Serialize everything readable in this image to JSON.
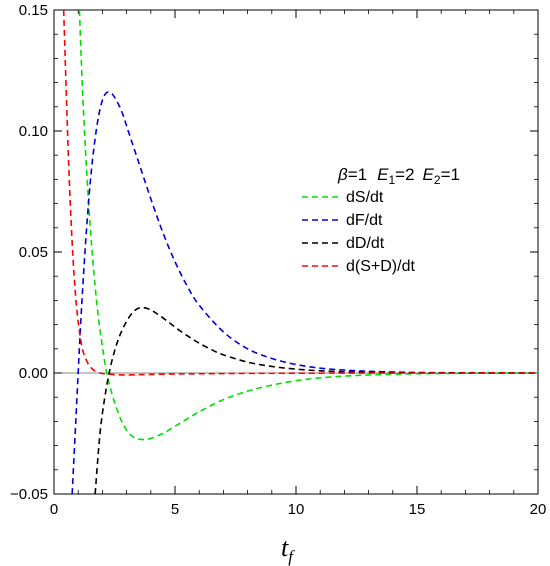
{
  "chart_data": {
    "type": "line",
    "title": "",
    "xlabel_main": "t",
    "xlabel_sub": "f",
    "ylabel": "",
    "xlim": [
      0,
      20
    ],
    "ylim": [
      -0.05,
      0.15
    ],
    "x_ticks": [
      0,
      5,
      10,
      15,
      20
    ],
    "x_tick_labels": [
      "0",
      "5",
      "10",
      "15",
      "20"
    ],
    "y_ticks": [
      -0.05,
      0.0,
      0.05,
      0.1,
      0.15
    ],
    "y_tick_labels": [
      "−0.05",
      "0.00",
      "0.05",
      "0.10",
      "0.15"
    ],
    "grid": false,
    "legend_position": "right-center",
    "legend_title": {
      "beta_symbol": "β",
      "beta_value": "=1",
      "e1_symbol": "E",
      "e1_sub": "1",
      "e1_value": "=2",
      "e2_symbol": "E",
      "e2_sub": "2",
      "e2_value": "=1"
    },
    "series": [
      {
        "name": "dS/dt",
        "color": "#00e000",
        "x": [
          1.05,
          1.2,
          1.4,
          1.6,
          1.8,
          2.0,
          2.2,
          2.5,
          2.8,
          3.1,
          3.4,
          3.7,
          4.0,
          4.5,
          5.0,
          5.5,
          6.0,
          7.0,
          8.0,
          9.0,
          10.0,
          11.0,
          12.0,
          13.0,
          14.0,
          15.0,
          16.0,
          17.0,
          18.0,
          19.0,
          20.0
        ],
        "values": [
          0.15,
          0.112,
          0.075,
          0.047,
          0.026,
          0.011,
          -0.001,
          -0.012,
          -0.02,
          -0.025,
          -0.027,
          -0.0275,
          -0.027,
          -0.025,
          -0.022,
          -0.019,
          -0.016,
          -0.011,
          -0.0075,
          -0.005,
          -0.0032,
          -0.002,
          -0.0013,
          -0.0008,
          -0.0005,
          -0.0003,
          -0.0002,
          -0.0001,
          -6e-05,
          -3e-05,
          0.0
        ]
      },
      {
        "name": "dF/dt",
        "color": "#0000e0",
        "x": [
          0.75,
          0.9,
          1.1,
          1.3,
          1.5,
          1.7,
          1.9,
          2.1,
          2.3,
          2.5,
          2.8,
          3.1,
          3.5,
          4.0,
          4.5,
          5.0,
          5.5,
          6.0,
          7.0,
          8.0,
          9.0,
          10.0,
          11.0,
          12.0,
          13.0,
          14.0,
          15.0,
          16.0,
          17.0,
          18.0,
          19.0,
          20.0
        ],
        "values": [
          -0.05,
          -0.02,
          0.02,
          0.053,
          0.079,
          0.097,
          0.109,
          0.115,
          0.116,
          0.114,
          0.108,
          0.099,
          0.087,
          0.072,
          0.058,
          0.046,
          0.036,
          0.028,
          0.017,
          0.01,
          0.006,
          0.0035,
          0.002,
          0.0012,
          0.0007,
          0.0004,
          0.0002,
          0.00012,
          7e-05,
          4e-05,
          2e-05,
          0.0
        ]
      },
      {
        "name": "dD/dt",
        "color": "#000000",
        "x": [
          1.7,
          1.9,
          2.1,
          2.3,
          2.5,
          2.7,
          2.9,
          3.1,
          3.3,
          3.5,
          3.7,
          3.9,
          4.1,
          4.4,
          4.8,
          5.2,
          5.6,
          6.0,
          6.5,
          7.0,
          8.0,
          9.0,
          10.0,
          11.0,
          12.0,
          13.0,
          14.0,
          15.0,
          16.0,
          17.0,
          18.0,
          20.0
        ],
        "values": [
          -0.05,
          -0.025,
          -0.01,
          0.001,
          0.009,
          0.015,
          0.0195,
          0.023,
          0.0255,
          0.0268,
          0.027,
          0.0265,
          0.0255,
          0.0235,
          0.0205,
          0.0175,
          0.0148,
          0.0123,
          0.0097,
          0.0075,
          0.0045,
          0.0027,
          0.0016,
          0.0009,
          0.0005,
          0.0003,
          0.00017,
          0.0001,
          5e-05,
          3e-05,
          2e-05,
          0.0
        ]
      },
      {
        "name": "d(S+D)/dt",
        "color": "#ff0000",
        "x": [
          0.4,
          0.5,
          0.6,
          0.7,
          0.8,
          0.9,
          1.0,
          1.1,
          1.2,
          1.4,
          1.6,
          1.8,
          2.0,
          2.3,
          2.6,
          3.0,
          3.5,
          4.0,
          5.0,
          6.0,
          8.0,
          10.0,
          12.0,
          15.0,
          20.0
        ],
        "values": [
          0.15,
          0.118,
          0.088,
          0.064,
          0.045,
          0.031,
          0.021,
          0.014,
          0.009,
          0.004,
          0.0015,
          0.0003,
          -0.0002,
          -0.0005,
          -0.0007,
          -0.0008,
          -0.0007,
          -0.0006,
          -0.0004,
          -0.0003,
          -0.00015,
          -8e-05,
          -4e-05,
          -1e-05,
          0.0
        ]
      }
    ]
  }
}
